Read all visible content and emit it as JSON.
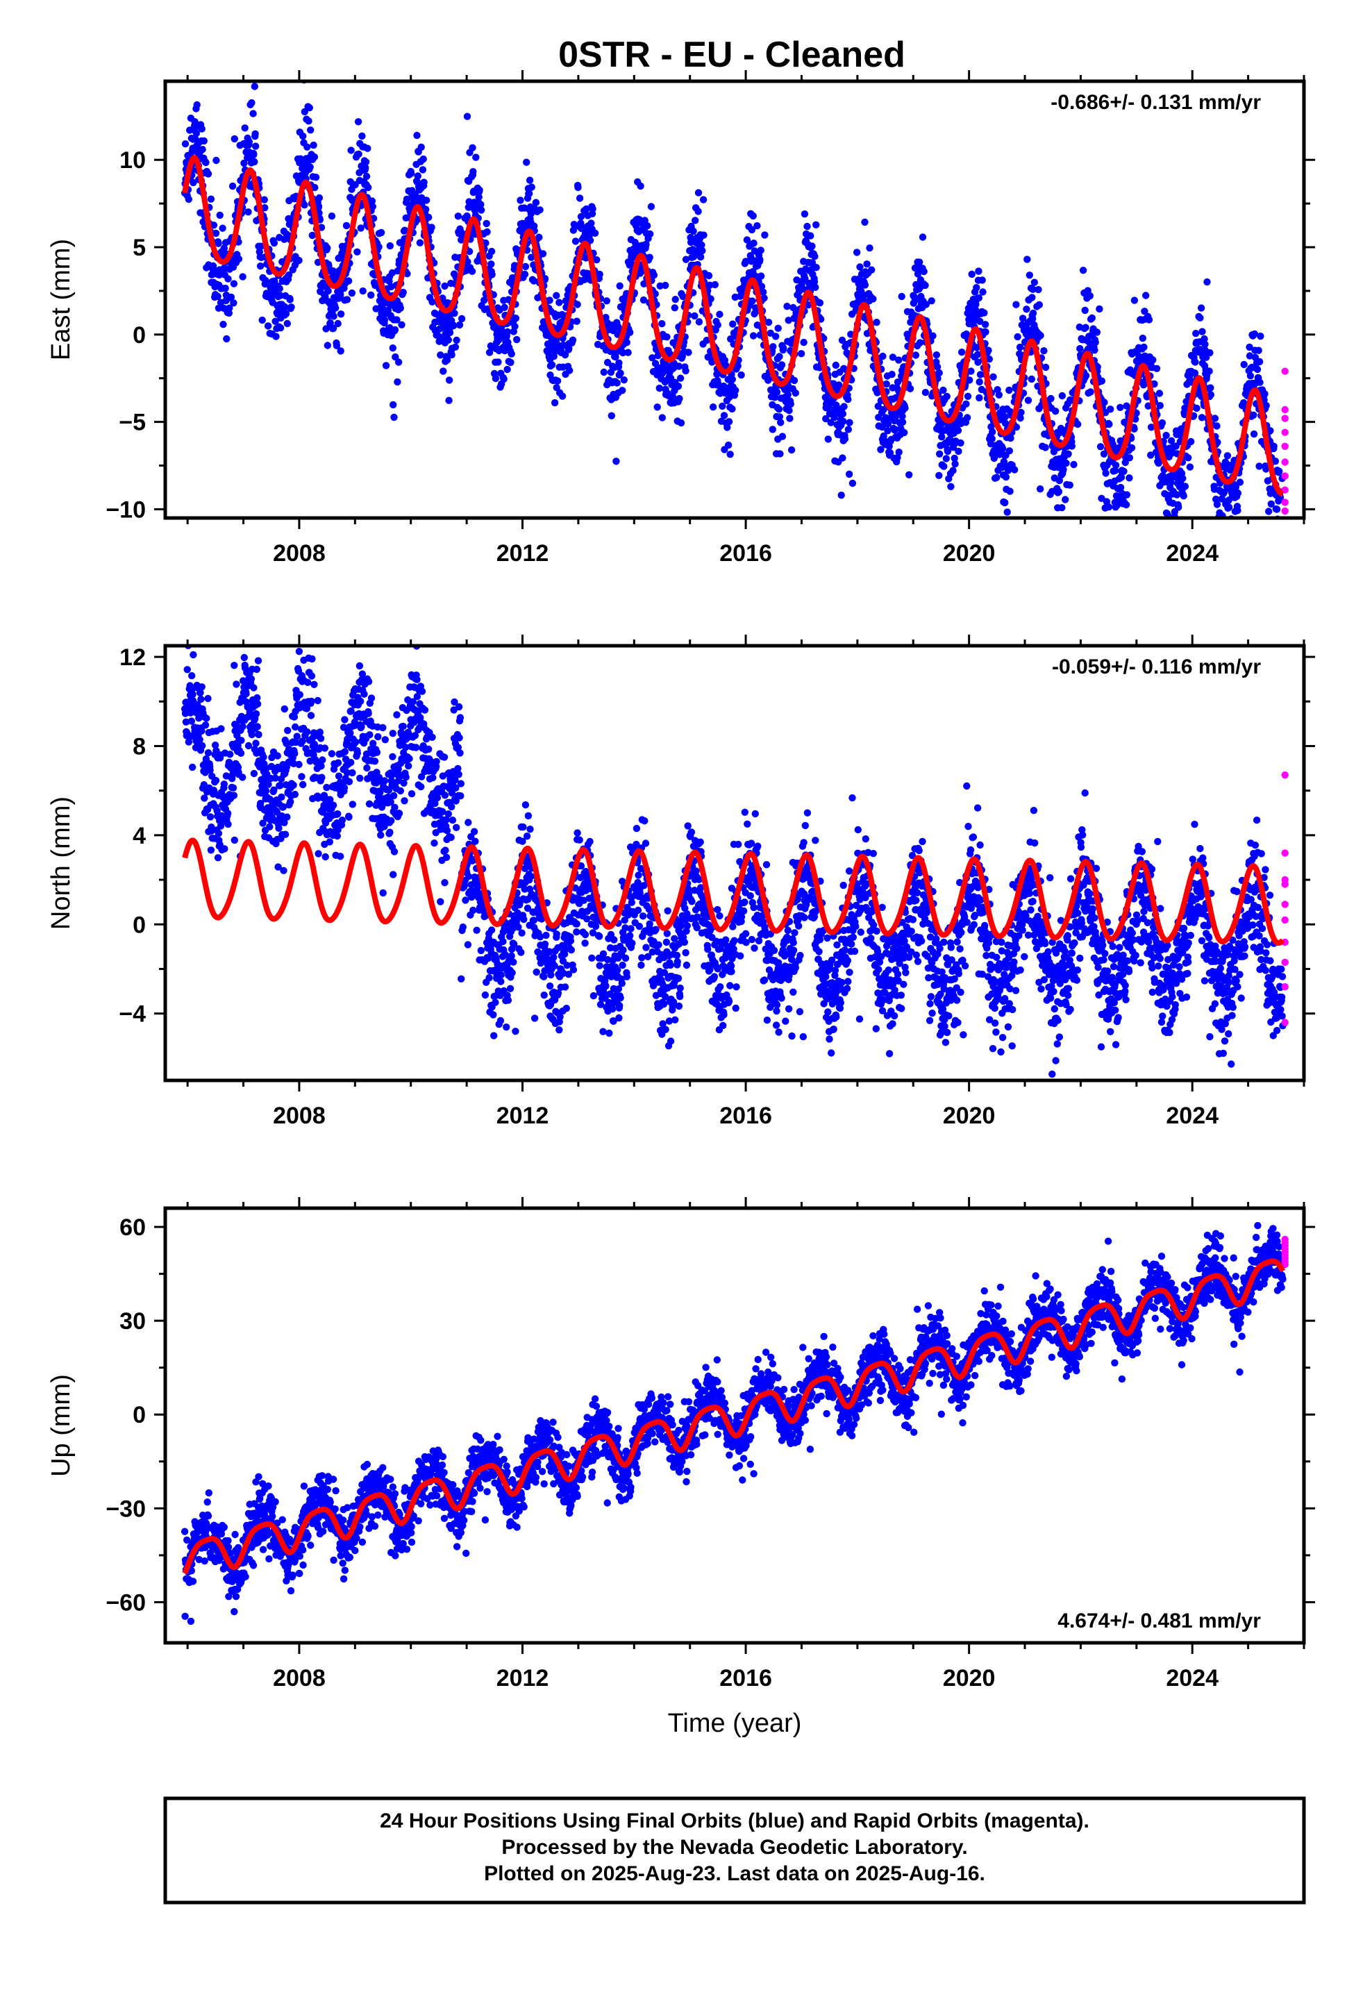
{
  "title": "0STR  - EU - Cleaned",
  "colors": {
    "final": "#0000ff",
    "rapid": "#ff00ff",
    "model": "#ff0000"
  },
  "footer": {
    "line1": "24 Hour Positions Using Final Orbits (blue) and Rapid Orbits (magenta).",
    "line2": "Processed by the Nevada Geodetic Laboratory.",
    "line3": "Plotted on 2025-Aug-23. Last data on 2025-Aug-16."
  },
  "chart_data": [
    {
      "type": "scatter",
      "ylabel": "East (mm)",
      "xlabel": "",
      "rate_label": "-0.686+/- 0.131 mm/yr",
      "xlim": [
        2005.6,
        2026.0
      ],
      "ylim": [
        -10.5,
        14.5
      ],
      "xticks": [
        2008,
        2012,
        2016,
        2020,
        2024
      ],
      "xtick_labels": [
        "2008",
        "2012",
        "2016",
        "2020",
        "2024"
      ],
      "yticks": [
        -10,
        -5,
        0,
        5,
        10
      ],
      "ytick_labels": [
        "−10",
        "−5",
        "0",
        "5",
        "10"
      ],
      "grid": false,
      "data_range": [
        2005.95,
        2025.62
      ],
      "model": {
        "intercept_at_2006": 7.0,
        "slope_mm_per_yr": -0.7,
        "annual_amp": 2.8,
        "annual_phase_rad": 0.8,
        "semiannual_amp": 0.4,
        "semiannual_phase_rad": 0.0,
        "offsets": []
      },
      "scatter_sigma": 1.5,
      "data_offsets": [
        {
          "year": 2005.95,
          "shift": 0
        }
      ],
      "rapid_points_y": [
        -2.1,
        -4.3,
        -4.8,
        -5.6,
        -6.4,
        -7.3,
        -8.1,
        -8.9,
        -9.6,
        -10.1
      ]
    },
    {
      "type": "scatter",
      "ylabel": "North (mm)",
      "xlabel": "",
      "rate_label": "-0.059+/- 0.116 mm/yr",
      "xlim": [
        2005.6,
        2026.0
      ],
      "ylim": [
        -7.0,
        12.5
      ],
      "xticks": [
        2008,
        2012,
        2016,
        2020,
        2024
      ],
      "xtick_labels": [
        "2008",
        "2012",
        "2016",
        "2020",
        "2024"
      ],
      "yticks": [
        -4,
        0,
        4,
        8,
        12
      ],
      "ytick_labels": [
        "−4",
        "0",
        "4",
        "8",
        "12"
      ],
      "grid": false,
      "data_range": [
        2005.95,
        2025.62
      ],
      "model": {
        "intercept_at_2006": 1.9,
        "slope_mm_per_yr": -0.06,
        "annual_amp": 1.7,
        "annual_phase_rad": 1.1,
        "semiannual_amp": 0.2,
        "semiannual_phase_rad": 0.0,
        "offsets": []
      },
      "scatter_sigma": 1.3,
      "data_offsets": [
        {
          "year": 2005.95,
          "shift": 5.5
        },
        {
          "year": 2010.9,
          "shift": -1.8
        }
      ],
      "rapid_points_y": [
        6.7,
        3.2,
        2.0,
        1.8,
        0.9,
        0.2,
        -0.8,
        -1.7,
        -2.8,
        -4.4
      ]
    },
    {
      "type": "scatter",
      "ylabel": "Up (mm)",
      "xlabel": "Time (year)",
      "rate_label": "4.674+/- 0.481 mm/yr",
      "xlim": [
        2005.6,
        2026.0
      ],
      "ylim": [
        -73,
        66
      ],
      "xticks": [
        2008,
        2012,
        2016,
        2020,
        2024
      ],
      "xtick_labels": [
        "2008",
        "2012",
        "2016",
        "2020",
        "2024"
      ],
      "yticks": [
        -60,
        -30,
        0,
        30,
        60
      ],
      "ytick_labels": [
        "−60",
        "−30",
        "0",
        "30",
        "60"
      ],
      "grid": false,
      "data_range": [
        2005.95,
        2025.62
      ],
      "model": {
        "intercept_at_2006": -46.0,
        "slope_mm_per_yr": 4.67,
        "annual_amp": 5.5,
        "annual_phase_rad": -0.6,
        "semiannual_amp": 1.2,
        "semiannual_phase_rad": 0.5,
        "offsets": []
      },
      "scatter_sigma": 4.5,
      "data_offsets": [
        {
          "year": 2005.95,
          "shift": 0
        }
      ],
      "rapid_points_y": [
        56,
        55,
        54,
        53,
        52,
        51,
        50,
        49,
        48
      ]
    }
  ]
}
